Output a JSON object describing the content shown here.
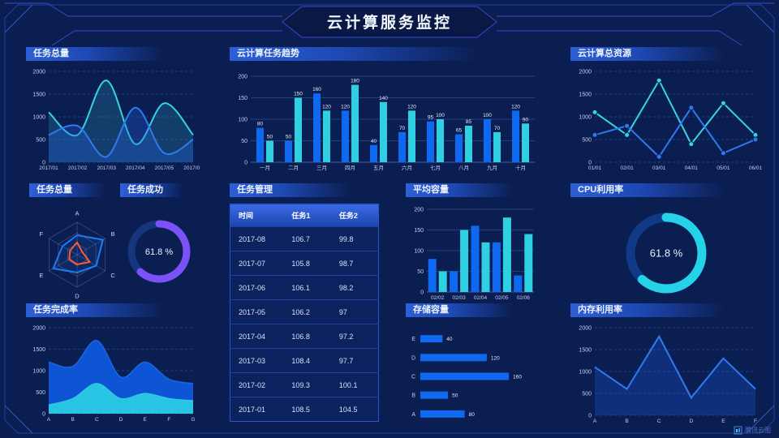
{
  "header": {
    "title": "云计算服务监控"
  },
  "watermark": {
    "label": "腾讯云图"
  },
  "colors": {
    "background": "#0b1e52",
    "blue": "#0f68f0",
    "cyan": "#2fd0e2",
    "purple": "#7b52f5",
    "orange": "#ff5a2a",
    "frame": "#1e42a0"
  },
  "panels": {
    "tasks_area": {
      "title": "任务总量"
    },
    "task_trend": {
      "title": "云计算任务趋势"
    },
    "resources": {
      "title": "云计算总资源"
    },
    "tasks_radar": {
      "title": "任务总量"
    },
    "task_success": {
      "title": "任务成功"
    },
    "task_table": {
      "title": "任务管理"
    },
    "avg_capacity": {
      "title": "平均容量"
    },
    "cpu": {
      "title": "CPU利用率"
    },
    "completion": {
      "title": "任务完成率"
    },
    "storage": {
      "title": "存储容量"
    },
    "memory": {
      "title": "内存利用率"
    }
  },
  "table": {
    "headers": [
      "时间",
      "任务1",
      "任务2"
    ],
    "rows": [
      [
        "2017-08",
        "106.7",
        "99.8"
      ],
      [
        "2017-07",
        "105.8",
        "98.7"
      ],
      [
        "2017-06",
        "106.1",
        "98.2"
      ],
      [
        "2017-05",
        "106.2",
        "97"
      ],
      [
        "2017-04",
        "106.8",
        "97.2"
      ],
      [
        "2017-03",
        "108.4",
        "97.7"
      ],
      [
        "2017-02",
        "109.3",
        "100.1"
      ],
      [
        "2017-01",
        "108.5",
        "104.5"
      ]
    ]
  },
  "chart_data": [
    {
      "id": "tasks_area",
      "type": "area",
      "title": "任务总量",
      "x": [
        "2017/01",
        "2017/02",
        "2017/03",
        "2017/04",
        "2017/05",
        "2017/06"
      ],
      "series": [
        {
          "name": "cyan",
          "color": "#35d5e0",
          "fill": "rgba(53,205,224,0.18)",
          "values": [
            1100,
            600,
            1800,
            400,
            1300,
            600
          ]
        },
        {
          "name": "blue",
          "color": "#2e7bf0",
          "fill": "rgba(35,100,230,0.30)",
          "values": [
            600,
            800,
            120,
            1200,
            200,
            500
          ]
        }
      ],
      "ylim": [
        0,
        2000
      ],
      "yticks": [
        0,
        500,
        1000,
        1500,
        2000
      ],
      "grid": "dashed"
    },
    {
      "id": "task_trend",
      "type": "bar",
      "title": "云计算任务趋势",
      "categories": [
        "一月",
        "二月",
        "三月",
        "四月",
        "五月",
        "六月",
        "七月",
        "八月",
        "九月",
        "十月"
      ],
      "series": [
        {
          "name": "blue",
          "color": "#0f68f0",
          "values": [
            80,
            50,
            160,
            120,
            40,
            70,
            95,
            65,
            100,
            120
          ]
        },
        {
          "name": "cyan",
          "color": "#2fd0e2",
          "values": [
            50,
            150,
            120,
            180,
            140,
            120,
            100,
            85,
            70,
            90
          ]
        }
      ],
      "ylim": [
        0,
        200
      ],
      "yticks": [
        0,
        50,
        100,
        150,
        200
      ],
      "labels": true
    },
    {
      "id": "resources",
      "type": "line",
      "title": "云计算总资源",
      "x": [
        "01/01",
        "02/01",
        "03/01",
        "04/01",
        "05/01",
        "06/01"
      ],
      "series": [
        {
          "color": "#35d5e0",
          "values": [
            1100,
            600,
            1800,
            400,
            1300,
            600
          ],
          "markers": true
        },
        {
          "color": "#2e7bf0",
          "values": [
            600,
            800,
            120,
            1200,
            200,
            500
          ],
          "markers": true
        }
      ],
      "ylim": [
        0,
        2000
      ],
      "yticks": [
        0,
        500,
        1000,
        1500,
        2000
      ],
      "grid": "dashed"
    },
    {
      "id": "tasks_radar",
      "type": "radar",
      "title": "任务总量",
      "axes": [
        "A",
        "B",
        "C",
        "D",
        "E",
        "F"
      ],
      "max": 100,
      "series": [
        {
          "color": "#1e7bf0",
          "values": [
            60,
            92,
            68,
            55,
            85,
            52
          ]
        },
        {
          "color": "#ff5a2a",
          "values": [
            38,
            18,
            45,
            30,
            28,
            25
          ]
        }
      ]
    },
    {
      "id": "task_success",
      "type": "gauge",
      "title": "任务成功",
      "value": 61.8,
      "label": "61.8 %",
      "color": "#7b52f5",
      "track": "#17357e"
    },
    {
      "id": "avg_capacity",
      "type": "bar",
      "title": "平均容量",
      "categories": [
        "02/02",
        "02/03",
        "02/04",
        "02/05",
        "02/06"
      ],
      "series": [
        {
          "color": "#0f68f0",
          "values": [
            80,
            50,
            160,
            120,
            40
          ]
        },
        {
          "color": "#2fd0e2",
          "values": [
            50,
            150,
            120,
            180,
            140
          ]
        }
      ],
      "ylim": [
        0,
        200
      ],
      "yticks": [
        0,
        50,
        100,
        150,
        200
      ],
      "labels": false
    },
    {
      "id": "cpu",
      "type": "gauge",
      "title": "CPU利用率",
      "value": 61.8,
      "label": "61.8 %",
      "color": "#26d2e8",
      "track": "#113a86"
    },
    {
      "id": "completion",
      "type": "area",
      "title": "任务完成率",
      "x": [
        "A",
        "B",
        "C",
        "D",
        "E",
        "F",
        "G"
      ],
      "series": [
        {
          "color": "#1a66e0",
          "fill": "#0d55d4",
          "opaque": true,
          "values": [
            1200,
            1100,
            1700,
            850,
            1200,
            800,
            700
          ]
        },
        {
          "color": "#2fc8e6",
          "fill": "#29c4e4",
          "opaque": true,
          "values": [
            200,
            350,
            700,
            350,
            470,
            350,
            300
          ]
        }
      ],
      "ylim": [
        0,
        2000
      ],
      "yticks": [
        0,
        500,
        1000,
        1500,
        2000
      ],
      "grid": "dashed"
    },
    {
      "id": "storage",
      "type": "hbar",
      "title": "存储容量",
      "rows": [
        {
          "label": "E",
          "value": 40
        },
        {
          "label": "D",
          "value": 120
        },
        {
          "label": "C",
          "value": 160
        },
        {
          "label": "B",
          "value": 50
        },
        {
          "label": "A",
          "value": 80
        }
      ],
      "xmax": 170,
      "color": "#0f68f0"
    },
    {
      "id": "memory",
      "type": "line",
      "title": "内存利用率",
      "x": [
        "A",
        "B",
        "C",
        "D",
        "E",
        "F"
      ],
      "series": [
        {
          "color": "#2e7bf0",
          "values": [
            1100,
            600,
            1800,
            400,
            1300,
            600
          ],
          "markers": false,
          "fill": "rgba(30,90,220,0.30)"
        }
      ],
      "ylim": [
        0,
        2000
      ],
      "yticks": [
        0,
        500,
        1000,
        1500,
        2000
      ],
      "grid": "dashed"
    }
  ]
}
